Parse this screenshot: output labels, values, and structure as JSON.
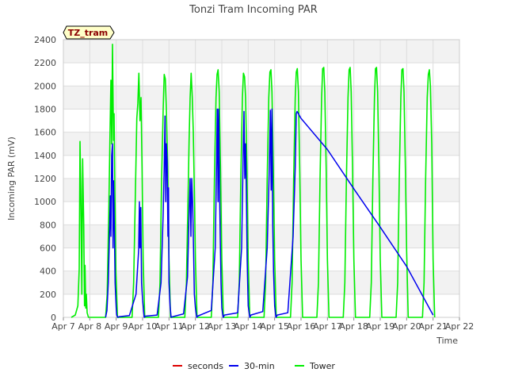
{
  "chart_data": {
    "type": "line",
    "title": "Tonzi Tram Incoming PAR",
    "xlabel": "Time",
    "ylabel": "Incoming PAR (mV)",
    "badge": "TZ_tram",
    "xlim": [
      7,
      22
    ],
    "ylim": [
      0,
      2400
    ],
    "xticks": [
      7,
      8,
      9,
      10,
      11,
      12,
      13,
      14,
      15,
      16,
      17,
      18,
      19,
      20,
      21,
      22
    ],
    "xtick_labels": [
      "Apr 7",
      "Apr 8",
      "Apr 9",
      "Apr 10",
      "Apr 11",
      "Apr 12",
      "Apr 13",
      "Apr 14",
      "Apr 15",
      "Apr 16",
      "Apr 17",
      "Apr 18",
      "Apr 19",
      "Apr 20",
      "Apr 21",
      "Apr 22"
    ],
    "yticks": [
      0,
      200,
      400,
      600,
      800,
      1000,
      1200,
      1400,
      1600,
      1800,
      2000,
      2200,
      2400
    ],
    "ytick_labels": [
      "0",
      "200",
      "400",
      "600",
      "800",
      "1000",
      "1200",
      "1400",
      "1600",
      "1800",
      "2000",
      "2200",
      "2400"
    ],
    "grid": true,
    "legend_position": "bottom-center",
    "series": [
      {
        "name": "seconds",
        "color": "#dd0000",
        "points": []
      },
      {
        "name": "30-min",
        "color": "#0000ee",
        "points": [
          [
            8.6,
            0
          ],
          [
            8.65,
            60
          ],
          [
            8.7,
            300
          ],
          [
            8.75,
            750
          ],
          [
            8.78,
            1050
          ],
          [
            8.8,
            700
          ],
          [
            8.83,
            1400
          ],
          [
            8.86,
            1500
          ],
          [
            8.88,
            600
          ],
          [
            8.9,
            1180
          ],
          [
            8.93,
            800
          ],
          [
            8.96,
            300
          ],
          [
            9.0,
            80
          ],
          [
            9.02,
            20
          ],
          [
            9.06,
            0
          ],
          [
            9.1,
            5
          ],
          [
            9.5,
            15
          ],
          [
            9.75,
            200
          ],
          [
            9.85,
            580
          ],
          [
            9.88,
            1000
          ],
          [
            9.9,
            600
          ],
          [
            9.93,
            950
          ],
          [
            9.96,
            300
          ],
          [
            10.0,
            150
          ],
          [
            10.06,
            0
          ],
          [
            10.1,
            10
          ],
          [
            10.55,
            20
          ],
          [
            10.7,
            300
          ],
          [
            10.78,
            900
          ],
          [
            10.82,
            1300
          ],
          [
            10.85,
            1740
          ],
          [
            10.88,
            1000
          ],
          [
            10.9,
            1500
          ],
          [
            10.93,
            1350
          ],
          [
            10.96,
            700
          ],
          [
            10.98,
            1120
          ],
          [
            11.0,
            300
          ],
          [
            11.04,
            100
          ],
          [
            11.08,
            0
          ],
          [
            11.12,
            5
          ],
          [
            11.55,
            30
          ],
          [
            11.7,
            350
          ],
          [
            11.76,
            900
          ],
          [
            11.8,
            1200
          ],
          [
            11.83,
            700
          ],
          [
            11.86,
            1200
          ],
          [
            11.9,
            960
          ],
          [
            11.93,
            600
          ],
          [
            11.96,
            200
          ],
          [
            12.0,
            80
          ],
          [
            12.05,
            0
          ],
          [
            12.08,
            10
          ],
          [
            12.6,
            60
          ],
          [
            12.75,
            600
          ],
          [
            12.8,
            1300
          ],
          [
            12.83,
            1800
          ],
          [
            12.86,
            1000
          ],
          [
            12.88,
            1800
          ],
          [
            12.91,
            1150
          ],
          [
            12.94,
            700
          ],
          [
            12.97,
            300
          ],
          [
            13.0,
            80
          ],
          [
            13.05,
            0
          ],
          [
            13.1,
            20
          ],
          [
            13.6,
            40
          ],
          [
            13.75,
            600
          ],
          [
            13.8,
            1300
          ],
          [
            13.84,
            1780
          ],
          [
            13.87,
            1200
          ],
          [
            13.9,
            1500
          ],
          [
            13.93,
            1080
          ],
          [
            13.96,
            500
          ],
          [
            14.0,
            100
          ],
          [
            14.06,
            0
          ],
          [
            14.1,
            20
          ],
          [
            14.55,
            50
          ],
          [
            14.72,
            600
          ],
          [
            14.8,
            1300
          ],
          [
            14.84,
            1790
          ],
          [
            14.87,
            1100
          ],
          [
            14.9,
            1800
          ],
          [
            14.93,
            800
          ],
          [
            14.96,
            400
          ],
          [
            15.0,
            100
          ],
          [
            15.05,
            0
          ],
          [
            15.1,
            20
          ],
          [
            15.5,
            40
          ],
          [
            15.7,
            700
          ],
          [
            15.78,
            1300
          ],
          [
            15.82,
            1760
          ],
          [
            15.85,
            1780
          ],
          [
            16.0,
            1720
          ],
          [
            17.0,
            1450
          ],
          [
            18.0,
            1110
          ],
          [
            19.0,
            780
          ],
          [
            20.0,
            440
          ],
          [
            21.0,
            20
          ]
        ]
      },
      {
        "name": "Tower",
        "color": "#00ee00",
        "points": [
          [
            7.3,
            0
          ],
          [
            7.45,
            20
          ],
          [
            7.55,
            100
          ],
          [
            7.6,
            420
          ],
          [
            7.63,
            1520
          ],
          [
            7.66,
            1100
          ],
          [
            7.7,
            200
          ],
          [
            7.73,
            1370
          ],
          [
            7.77,
            800
          ],
          [
            7.8,
            100
          ],
          [
            7.82,
            450
          ],
          [
            7.85,
            80
          ],
          [
            7.87,
            200
          ],
          [
            7.9,
            40
          ],
          [
            7.95,
            0
          ],
          [
            8.6,
            0
          ],
          [
            8.66,
            200
          ],
          [
            8.72,
            900
          ],
          [
            8.77,
            1650
          ],
          [
            8.8,
            2050
          ],
          [
            8.83,
            1500
          ],
          [
            8.86,
            2360
          ],
          [
            8.88,
            1900
          ],
          [
            8.9,
            1530
          ],
          [
            8.92,
            1760
          ],
          [
            8.95,
            1100
          ],
          [
            8.99,
            400
          ],
          [
            9.05,
            0
          ],
          [
            9.6,
            0
          ],
          [
            9.66,
            300
          ],
          [
            9.72,
            1000
          ],
          [
            9.78,
            1720
          ],
          [
            9.82,
            1850
          ],
          [
            9.86,
            2110
          ],
          [
            9.9,
            1700
          ],
          [
            9.94,
            1900
          ],
          [
            9.98,
            1300
          ],
          [
            10.02,
            500
          ],
          [
            10.08,
            0
          ],
          [
            10.6,
            0
          ],
          [
            10.66,
            300
          ],
          [
            10.72,
            1200
          ],
          [
            10.78,
            1800
          ],
          [
            10.82,
            2100
          ],
          [
            10.86,
            2060
          ],
          [
            10.9,
            1800
          ],
          [
            10.95,
            1300
          ],
          [
            11.0,
            500
          ],
          [
            11.06,
            0
          ],
          [
            11.6,
            0
          ],
          [
            11.66,
            300
          ],
          [
            11.72,
            1000
          ],
          [
            11.76,
            1530
          ],
          [
            11.8,
            1900
          ],
          [
            11.84,
            2110
          ],
          [
            11.88,
            1900
          ],
          [
            11.92,
            1600
          ],
          [
            11.96,
            1100
          ],
          [
            12.0,
            500
          ],
          [
            12.06,
            0
          ],
          [
            12.6,
            0
          ],
          [
            12.66,
            300
          ],
          [
            12.72,
            1200
          ],
          [
            12.78,
            1900
          ],
          [
            12.82,
            2100
          ],
          [
            12.86,
            2140
          ],
          [
            12.9,
            1950
          ],
          [
            12.95,
            1300
          ],
          [
            13.0,
            500
          ],
          [
            13.06,
            0
          ],
          [
            13.6,
            0
          ],
          [
            13.66,
            300
          ],
          [
            13.72,
            1200
          ],
          [
            13.78,
            1900
          ],
          [
            13.82,
            2110
          ],
          [
            13.86,
            2080
          ],
          [
            13.9,
            1900
          ],
          [
            13.95,
            1300
          ],
          [
            14.0,
            500
          ],
          [
            14.06,
            0
          ],
          [
            14.6,
            0
          ],
          [
            14.66,
            300
          ],
          [
            14.72,
            1200
          ],
          [
            14.78,
            1900
          ],
          [
            14.82,
            2120
          ],
          [
            14.86,
            2140
          ],
          [
            14.9,
            1950
          ],
          [
            14.95,
            1300
          ],
          [
            15.0,
            500
          ],
          [
            15.06,
            0
          ],
          [
            15.6,
            0
          ],
          [
            15.66,
            300
          ],
          [
            15.72,
            1200
          ],
          [
            15.78,
            1900
          ],
          [
            15.82,
            2120
          ],
          [
            15.86,
            2150
          ],
          [
            15.9,
            1950
          ],
          [
            15.95,
            1300
          ],
          [
            16.0,
            500
          ],
          [
            16.06,
            0
          ],
          [
            16.6,
            0
          ],
          [
            16.66,
            300
          ],
          [
            16.72,
            1200
          ],
          [
            16.78,
            1900
          ],
          [
            16.82,
            2150
          ],
          [
            16.86,
            2160
          ],
          [
            16.9,
            1950
          ],
          [
            16.95,
            1300
          ],
          [
            17.0,
            500
          ],
          [
            17.06,
            0
          ],
          [
            17.6,
            0
          ],
          [
            17.66,
            300
          ],
          [
            17.72,
            1200
          ],
          [
            17.78,
            1900
          ],
          [
            17.82,
            2140
          ],
          [
            17.86,
            2160
          ],
          [
            17.9,
            1950
          ],
          [
            17.95,
            1300
          ],
          [
            18.0,
            500
          ],
          [
            18.06,
            0
          ],
          [
            18.6,
            0
          ],
          [
            18.66,
            300
          ],
          [
            18.72,
            1200
          ],
          [
            18.78,
            1900
          ],
          [
            18.82,
            2150
          ],
          [
            18.86,
            2160
          ],
          [
            18.9,
            1950
          ],
          [
            18.95,
            1300
          ],
          [
            19.0,
            500
          ],
          [
            19.06,
            0
          ],
          [
            19.6,
            0
          ],
          [
            19.66,
            300
          ],
          [
            19.72,
            1200
          ],
          [
            19.78,
            1900
          ],
          [
            19.82,
            2140
          ],
          [
            19.86,
            2150
          ],
          [
            19.9,
            1950
          ],
          [
            19.95,
            1300
          ],
          [
            20.0,
            580
          ],
          [
            20.06,
            0
          ],
          [
            20.6,
            0
          ],
          [
            20.66,
            300
          ],
          [
            20.72,
            1200
          ],
          [
            20.78,
            1900
          ],
          [
            20.82,
            2100
          ],
          [
            20.86,
            2140
          ],
          [
            20.9,
            2000
          ],
          [
            20.95,
            1500
          ],
          [
            21.0,
            500
          ],
          [
            21.06,
            0
          ]
        ]
      }
    ]
  }
}
